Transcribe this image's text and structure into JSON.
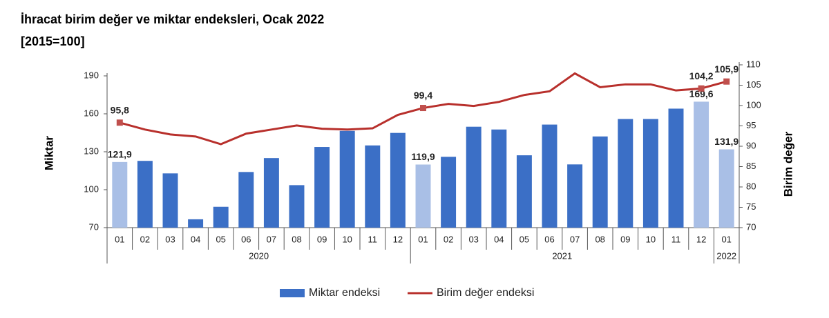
{
  "chart_data": {
    "type": "bar_line",
    "title": "İhracat birim değer ve miktar endeksleri, Ocak 2022",
    "subtitle": "[2015=100]",
    "y_label": "Miktar",
    "y2_label": "Birim değer",
    "groups": [
      {
        "label": "2020",
        "categories": [
          "01",
          "02",
          "03",
          "04",
          "05",
          "06",
          "07",
          "08",
          "09",
          "10",
          "11",
          "12"
        ]
      },
      {
        "label": "2021",
        "categories": [
          "01",
          "02",
          "03",
          "04",
          "05",
          "06",
          "07",
          "08",
          "09",
          "10",
          "11",
          "12"
        ]
      },
      {
        "label": "2022",
        "categories": [
          "01"
        ]
      }
    ],
    "ylim": [
      70,
      190
    ],
    "yticks": [
      70,
      100,
      130,
      160,
      190
    ],
    "y2lim": [
      70,
      110
    ],
    "y2ticks": [
      70,
      75,
      80,
      85,
      90,
      95,
      100,
      105,
      110
    ],
    "series": [
      {
        "name": "Miktar endeksi",
        "type": "bar",
        "color": "#3b6fc6",
        "colors": [
          "#a9bfe6",
          "#3b6fc6",
          "#3b6fc6",
          "#3b6fc6",
          "#3b6fc6",
          "#3b6fc6",
          "#3b6fc6",
          "#3b6fc6",
          "#3b6fc6",
          "#3b6fc6",
          "#3b6fc6",
          "#3b6fc6",
          "#a9bfe6",
          "#3b6fc6",
          "#3b6fc6",
          "#3b6fc6",
          "#3b6fc6",
          "#3b6fc6",
          "#3b6fc6",
          "#3b6fc6",
          "#3b6fc6",
          "#3b6fc6",
          "#3b6fc6",
          "#a9bfe6",
          "#a9bfe6"
        ],
        "values": [
          121.9,
          122.8,
          112.9,
          76.6,
          86.5,
          114,
          125,
          103.6,
          133.8,
          146.5,
          135,
          144.9,
          119.9,
          126,
          149.8,
          147.6,
          127.2,
          151.5,
          120,
          142.1,
          155.9,
          155.9,
          164.1,
          169.6,
          131.9
        ],
        "value_labels": [
          "121,9",
          null,
          null,
          null,
          null,
          null,
          null,
          null,
          null,
          null,
          null,
          null,
          "119,9",
          null,
          null,
          null,
          null,
          null,
          null,
          null,
          null,
          null,
          null,
          "169,6",
          "131,9"
        ]
      },
      {
        "name": "Birim değer endeksi",
        "type": "line",
        "axis": "y2",
        "color": "#b8302c",
        "marker_color": "#c0504d",
        "values": [
          95.8,
          94.1,
          92.9,
          92.4,
          90.5,
          93.1,
          94.1,
          95.1,
          94.3,
          94.1,
          94.4,
          97.7,
          99.4,
          100.4,
          99.9,
          100.9,
          102.6,
          103.5,
          107.9,
          104.5,
          105.2,
          105.2,
          103.7,
          104.2,
          105.9
        ],
        "value_labels": [
          "95,8",
          null,
          null,
          null,
          null,
          null,
          null,
          null,
          null,
          null,
          null,
          null,
          "99,4",
          null,
          null,
          null,
          null,
          null,
          null,
          null,
          null,
          null,
          null,
          "104,2",
          "105,9"
        ]
      }
    ]
  }
}
